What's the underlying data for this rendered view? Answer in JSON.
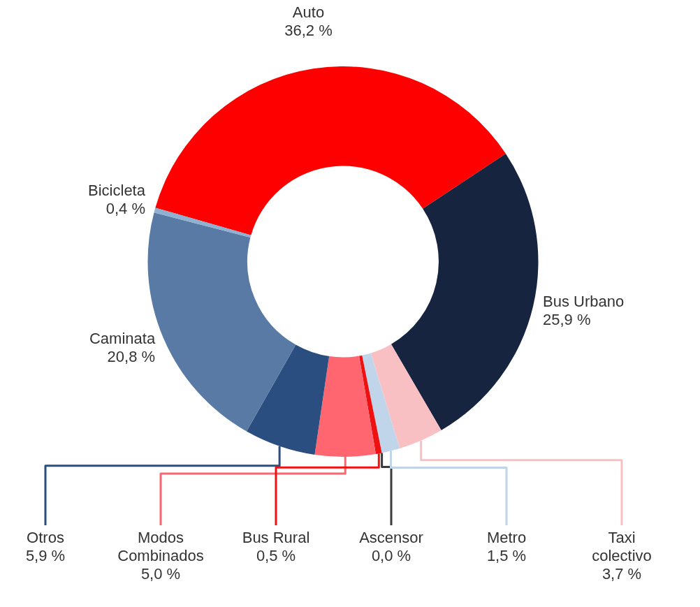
{
  "chart_data": {
    "type": "donut",
    "categories": [
      "Auto",
      "Bus Urbano",
      "Taxi colectivo",
      "Metro",
      "Ascensor",
      "Bus Rural",
      "Modos Combinados",
      "Otros",
      "Caminata",
      "Bicicleta"
    ],
    "values": [
      36.2,
      25.9,
      3.7,
      1.5,
      0.0,
      0.5,
      5.0,
      5.9,
      20.8,
      0.4
    ],
    "colors": [
      "#ff0000",
      "#16243f",
      "#f9c0c4",
      "#c0d4ea",
      "#3a3a3a",
      "#ee1111",
      "#ff6670",
      "#2b4e80",
      "#5a7aa6",
      "#8fb0d0"
    ],
    "value_labels": [
      "36,2 %",
      "25,9 %",
      "3,7 %",
      "1,5 %",
      "0,0 %",
      "0,5 %",
      "5,0 %",
      "5,9 %",
      "20,8 %",
      "0,4 %"
    ]
  }
}
